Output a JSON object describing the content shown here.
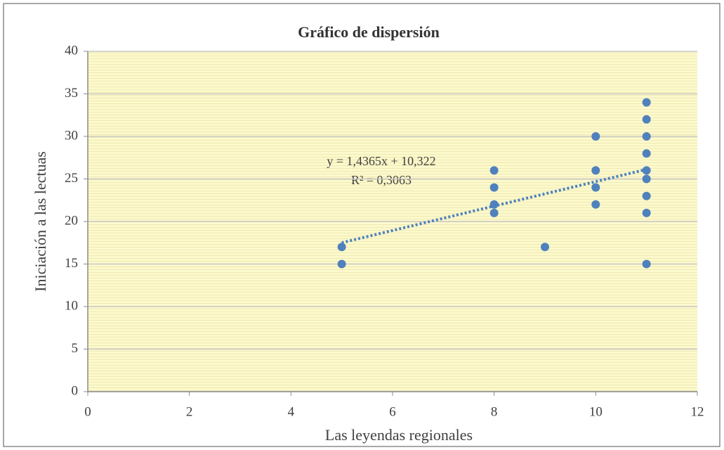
{
  "chart_data": {
    "type": "scatter",
    "title": "Gráfico de dispersión",
    "x_label": "Las leyendas regionales",
    "y_label": "Iniciación a las lectuas",
    "x": [
      5,
      5,
      8,
      8,
      8,
      8,
      9,
      10,
      10,
      10,
      10,
      11,
      11,
      11,
      11,
      11,
      11,
      11,
      11,
      11
    ],
    "values": [
      17,
      15,
      26,
      24,
      22,
      21,
      17,
      30,
      26,
      24,
      22,
      34,
      32,
      30,
      28,
      26,
      25,
      23,
      21,
      15
    ],
    "color": "#4f81bd",
    "xlim": [
      0,
      12
    ],
    "xticks": [
      0,
      2,
      4,
      6,
      8,
      10,
      12
    ],
    "ylim": [
      0,
      40
    ],
    "yticks": [
      0,
      5,
      10,
      15,
      20,
      25,
      30,
      35,
      40
    ],
    "grid": true,
    "trendline": {
      "slope": 1.4365,
      "intercept": 10.322,
      "r2": 0.3063,
      "equation_label": "y = 1,4365x  + 10,322",
      "r2_label": "R² = 0,3063"
    }
  }
}
